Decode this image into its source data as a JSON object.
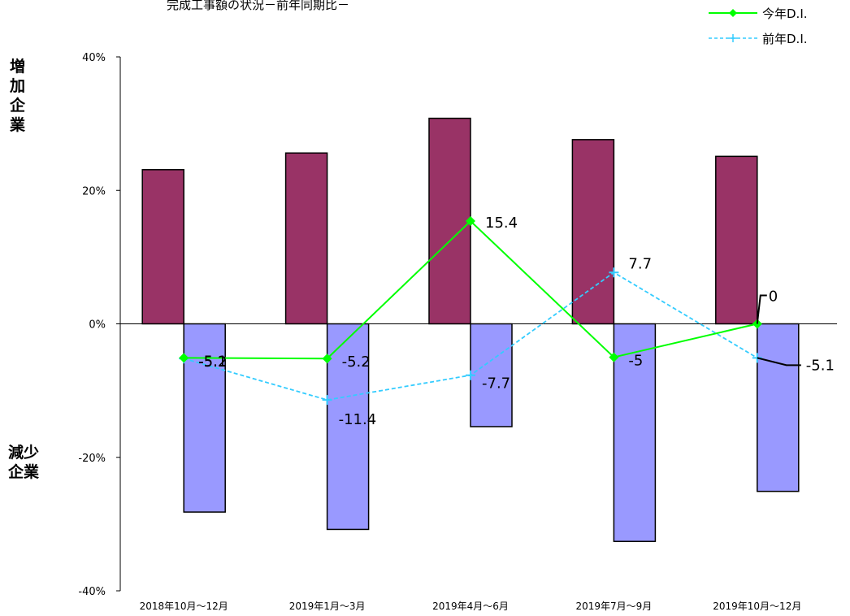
{
  "title": "完成工事額の状況－前年同期比－",
  "y_label_top": [
    "増",
    "加",
    "企",
    "業"
  ],
  "y_label_bottom": [
    "減少",
    "企業"
  ],
  "colors": {
    "increase_bar": "#993366",
    "decrease_bar": "#9999ff",
    "this_year_line": "#00ff00",
    "last_year_line": "#33ccff"
  },
  "chart_data": {
    "type": "bar",
    "categories": [
      "2018年10月～12月",
      "2019年1月～3月",
      "2019年4月～6月",
      "2019年7月～9月",
      "2019年10月～12月"
    ],
    "ylim": [
      -40,
      40
    ],
    "yticks": [
      40,
      20,
      0,
      -20,
      -40
    ],
    "ytick_labels": [
      "40%",
      "20%",
      "0%",
      "-20%",
      "-40%"
    ],
    "series": [
      {
        "kind": "bar",
        "role": "increase",
        "values": [
          23.1,
          25.6,
          30.8,
          27.6,
          25.1
        ]
      },
      {
        "kind": "bar",
        "role": "decrease",
        "values": [
          -28.2,
          -30.8,
          -15.4,
          -32.6,
          -25.1
        ]
      },
      {
        "kind": "line",
        "name": "今年D.I.",
        "values": [
          -5.1,
          -5.2,
          15.4,
          -5.0,
          0.0
        ],
        "labels": [
          "-5.1",
          "-5.2",
          "15.4",
          "-5",
          "0"
        ]
      },
      {
        "kind": "line",
        "name": "前年D.I.",
        "values": [
          -5.2,
          -11.4,
          -7.7,
          7.7,
          -5.1
        ],
        "labels": [
          "-5.2",
          "-11.4",
          "-7.7",
          "7.7",
          "-5.1"
        ]
      }
    ],
    "legend_position": "top-right",
    "grid": false
  }
}
